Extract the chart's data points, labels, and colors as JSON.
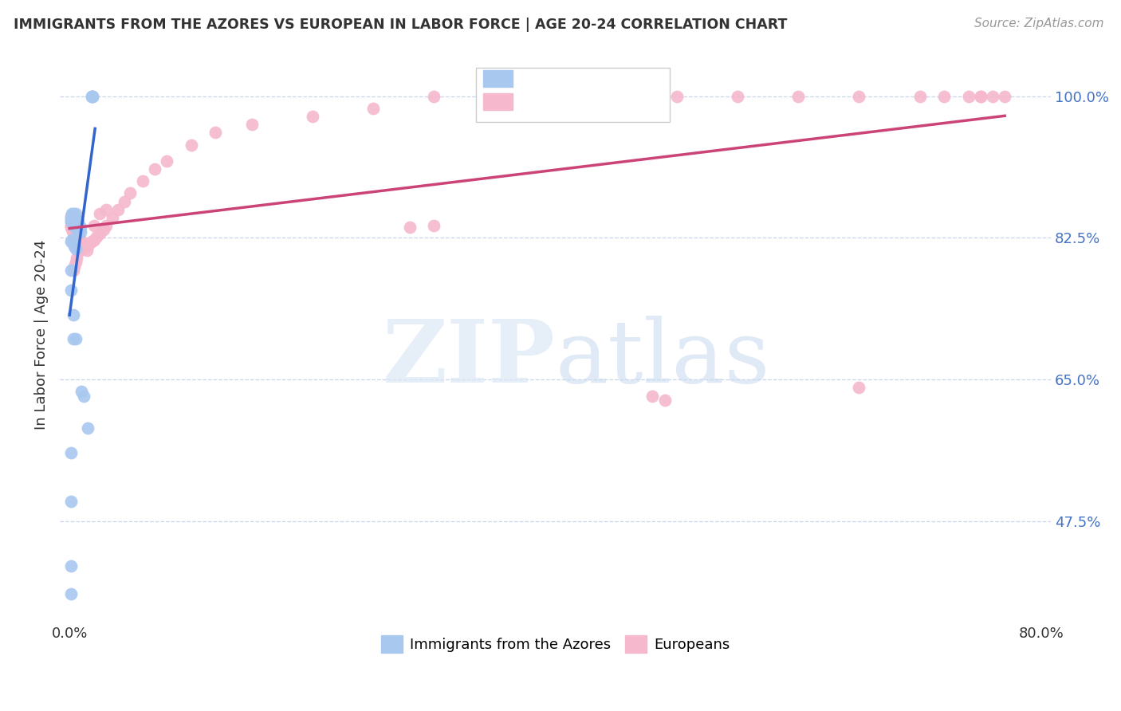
{
  "title": "IMMIGRANTS FROM THE AZORES VS EUROPEAN IN LABOR FORCE | AGE 20-24 CORRELATION CHART",
  "source": "Source: ZipAtlas.com",
  "ylabel": "In Labor Force | Age 20-24",
  "ytick_labels": [
    "100.0%",
    "82.5%",
    "65.0%",
    "47.5%"
  ],
  "ytick_values": [
    1.0,
    0.825,
    0.65,
    0.475
  ],
  "xlim": [
    0.0,
    0.8
  ],
  "ylim": [
    0.35,
    1.06
  ],
  "watermark_zip": "ZIP",
  "watermark_atlas": "atlas",
  "azores_color": "#a8c8f0",
  "azores_line_color": "#3366cc",
  "europeans_color": "#f5b8cc",
  "europeans_line_color": "#cc4477",
  "azores_x": [
    0.001,
    0.001,
    0.002,
    0.002,
    0.003,
    0.003,
    0.003,
    0.004,
    0.004,
    0.004,
    0.005,
    0.005,
    0.005,
    0.006,
    0.006,
    0.006,
    0.006,
    0.007,
    0.007,
    0.007,
    0.008,
    0.008,
    0.009,
    0.009,
    0.001,
    0.002,
    0.003,
    0.004,
    0.005,
    0.001,
    0.001,
    0.001,
    0.001,
    0.01,
    0.012,
    0.015,
    0.018,
    0.018,
    0.019,
    0.019,
    0.001,
    0.001,
    0.003,
    0.003,
    0.005
  ],
  "azores_y": [
    0.845,
    0.85,
    0.845,
    0.855,
    0.84,
    0.845,
    0.855,
    0.84,
    0.845,
    0.85,
    0.84,
    0.848,
    0.855,
    0.836,
    0.84,
    0.845,
    0.848,
    0.835,
    0.84,
    0.845,
    0.835,
    0.84,
    0.832,
    0.838,
    0.82,
    0.822,
    0.818,
    0.815,
    0.812,
    0.56,
    0.5,
    0.42,
    0.385,
    0.635,
    0.63,
    0.59,
    1.0,
    1.0,
    1.0,
    1.0,
    0.785,
    0.76,
    0.73,
    0.7,
    0.7
  ],
  "europeans_x": [
    0.001,
    0.001,
    0.001,
    0.001,
    0.001,
    0.002,
    0.002,
    0.002,
    0.002,
    0.003,
    0.003,
    0.003,
    0.003,
    0.004,
    0.004,
    0.004,
    0.005,
    0.005,
    0.005,
    0.006,
    0.006,
    0.006,
    0.007,
    0.007,
    0.007,
    0.008,
    0.008,
    0.009,
    0.009,
    0.01,
    0.01,
    0.012,
    0.012,
    0.014,
    0.015,
    0.016,
    0.018,
    0.02,
    0.022,
    0.025,
    0.028,
    0.03,
    0.035,
    0.04,
    0.045,
    0.05,
    0.06,
    0.07,
    0.08,
    0.1,
    0.12,
    0.15,
    0.2,
    0.25,
    0.3,
    0.35,
    0.4,
    0.45,
    0.5,
    0.55,
    0.6,
    0.65,
    0.7,
    0.72,
    0.74,
    0.75,
    0.75,
    0.76,
    0.77,
    0.28,
    0.3,
    0.48,
    0.49,
    0.65,
    0.003,
    0.004,
    0.005,
    0.006,
    0.007,
    0.008,
    0.009,
    0.02,
    0.025,
    0.03
  ],
  "europeans_y": [
    0.838,
    0.84,
    0.845,
    0.848,
    0.852,
    0.835,
    0.84,
    0.845,
    0.85,
    0.83,
    0.835,
    0.84,
    0.848,
    0.828,
    0.833,
    0.84,
    0.825,
    0.832,
    0.838,
    0.822,
    0.828,
    0.834,
    0.82,
    0.826,
    0.832,
    0.818,
    0.824,
    0.816,
    0.822,
    0.815,
    0.82,
    0.812,
    0.818,
    0.81,
    0.815,
    0.818,
    0.82,
    0.822,
    0.826,
    0.83,
    0.835,
    0.84,
    0.85,
    0.86,
    0.87,
    0.88,
    0.895,
    0.91,
    0.92,
    0.94,
    0.955,
    0.965,
    0.975,
    0.985,
    1.0,
    1.0,
    1.0,
    1.0,
    1.0,
    1.0,
    1.0,
    1.0,
    1.0,
    1.0,
    1.0,
    1.0,
    1.0,
    1.0,
    1.0,
    0.838,
    0.84,
    0.63,
    0.625,
    0.64,
    0.785,
    0.79,
    0.795,
    0.8,
    0.808,
    0.812,
    0.816,
    0.84,
    0.855,
    0.86
  ]
}
